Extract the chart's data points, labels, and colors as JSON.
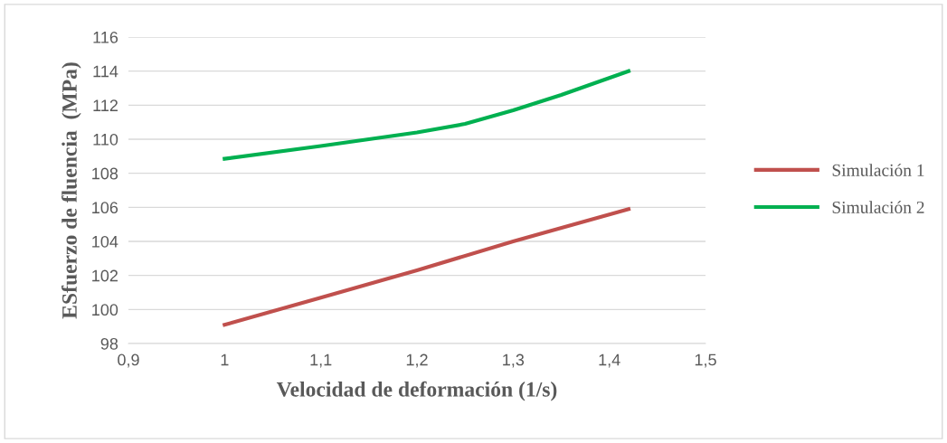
{
  "chart_data": {
    "type": "line",
    "xlabel": "Velocidad de deformación (1/s)",
    "ylabel": "ESfuerzo de fluencia  (MPa)",
    "series": [
      {
        "name": "Simulación 1",
        "color": "#c0504d",
        "x": [
          1,
          1.1,
          1.2,
          1.3,
          1.42
        ],
        "values": [
          99.1,
          100.7,
          102.3,
          104.0,
          105.9
        ]
      },
      {
        "name": "Simulación 2",
        "color": "#00b050",
        "x": [
          1,
          1.1,
          1.2,
          1.25,
          1.3,
          1.35,
          1.42
        ],
        "values": [
          108.85,
          109.6,
          110.4,
          110.9,
          111.7,
          112.6,
          114.0
        ]
      }
    ],
    "xlim": [
      0.9,
      1.5
    ],
    "xticks": [
      {
        "value": 0.9,
        "label": "0,9"
      },
      1,
      {
        "value": 1.1,
        "label": "1,1"
      },
      {
        "value": 1.2,
        "label": "1,2"
      },
      {
        "value": 1.3,
        "label": "1,3"
      },
      {
        "value": 1.4,
        "label": "1,4"
      },
      {
        "value": 1.5,
        "label": "1,5"
      }
    ],
    "ylim": [
      98,
      116
    ],
    "yticks": [
      98,
      100,
      102,
      104,
      106,
      108,
      110,
      112,
      114,
      116
    ],
    "grid": "y",
    "legend": "right",
    "marker": "none",
    "line_style": "solid"
  }
}
